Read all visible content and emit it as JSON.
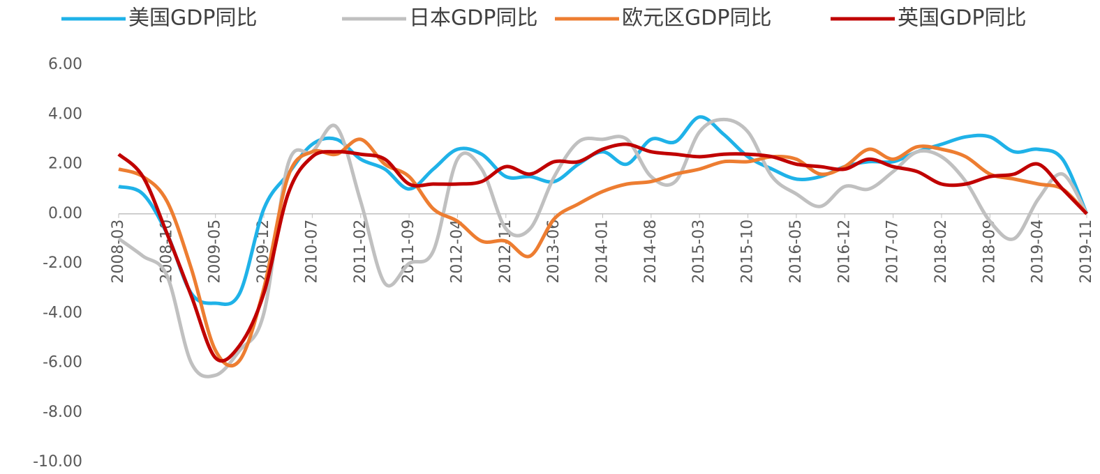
{
  "chart_data": {
    "type": "line",
    "categories": [
      "2008-03",
      null,
      "2008-10",
      null,
      "2009-05",
      null,
      "2009-12",
      null,
      "2010-07",
      null,
      "2011-02",
      null,
      "2011-09",
      null,
      "2012-04",
      null,
      "2012-11",
      null,
      "2013-06",
      null,
      "2014-01",
      null,
      "2014-08",
      null,
      "2015-03",
      null,
      "2015-10",
      null,
      "2016-05",
      null,
      "2016-12",
      null,
      "2017-07",
      null,
      "2018-02",
      null,
      "2018-09",
      null,
      "2019-04",
      null,
      "2019-11"
    ],
    "series": [
      {
        "name": "美国GDP同比",
        "color": "#1fb2e8",
        "values": [
          1.1,
          0.8,
          -0.8,
          -3.2,
          -3.6,
          -3.2,
          0.2,
          1.6,
          2.8,
          3.0,
          2.2,
          1.8,
          1.0,
          1.8,
          2.6,
          2.4,
          1.5,
          1.5,
          1.3,
          2.0,
          2.5,
          2.0,
          3.0,
          2.9,
          3.9,
          3.2,
          2.3,
          1.8,
          1.4,
          1.5,
          1.9,
          2.1,
          2.1,
          2.5,
          2.8,
          3.1,
          3.1,
          2.5,
          2.6,
          2.2,
          0
        ]
      },
      {
        "name": "日本GDP同比",
        "color": "#c0c0c0",
        "values": [
          -1.0,
          -1.7,
          -2.5,
          -6.0,
          -6.5,
          -5.5,
          -4.0,
          2.0,
          2.5,
          3.5,
          0.5,
          -2.8,
          -2.0,
          -1.5,
          2.2,
          1.8,
          -0.6,
          -0.6,
          1.5,
          2.9,
          3.0,
          3.0,
          1.5,
          1.3,
          3.3,
          3.8,
          3.3,
          1.5,
          0.8,
          0.3,
          1.1,
          1.0,
          1.7,
          2.5,
          2.3,
          1.3,
          -0.3,
          -1.0,
          0.6,
          1.6,
          0
        ]
      },
      {
        "name": "欧元区GDP同比",
        "color": "#ed7d31",
        "values": [
          1.8,
          1.5,
          0.5,
          -2.2,
          -5.5,
          -5.9,
          -3.0,
          1.5,
          2.5,
          2.4,
          3.0,
          2.0,
          1.5,
          0.2,
          -0.3,
          -1.1,
          -1.1,
          -1.7,
          -0.2,
          0.4,
          0.9,
          1.2,
          1.3,
          1.6,
          1.8,
          2.1,
          2.1,
          2.3,
          2.2,
          1.6,
          1.9,
          2.6,
          2.2,
          2.7,
          2.6,
          2.3,
          1.6,
          1.4,
          1.2,
          1.0,
          0
        ]
      },
      {
        "name": "英国GDP同比",
        "color": "#c00000",
        "values": [
          2.4,
          1.5,
          -0.8,
          -3.3,
          -5.8,
          -5.3,
          -3.2,
          0.8,
          2.3,
          2.5,
          2.4,
          2.2,
          1.2,
          1.2,
          1.2,
          1.3,
          1.9,
          1.6,
          2.1,
          2.1,
          2.6,
          2.8,
          2.5,
          2.4,
          2.3,
          2.4,
          2.4,
          2.3,
          2.0,
          1.9,
          1.8,
          2.2,
          1.9,
          1.7,
          1.2,
          1.2,
          1.5,
          1.6,
          2.0,
          1.0,
          0
        ]
      }
    ],
    "ylim": [
      -10,
      6
    ],
    "yticks": [
      {
        "value": -10,
        "label": "-10.00"
      },
      {
        "value": -8,
        "label": "-8.00"
      },
      {
        "value": -6,
        "label": "-6.00"
      },
      {
        "value": -4,
        "label": "-4.00"
      },
      {
        "value": -2,
        "label": "-2.00"
      },
      {
        "value": 0,
        "label": "0.00"
      },
      {
        "value": 2,
        "label": "2.00"
      },
      {
        "value": 4,
        "label": "4.00"
      },
      {
        "value": 6,
        "label": "6.00"
      }
    ],
    "grid": false,
    "legend": "top"
  }
}
